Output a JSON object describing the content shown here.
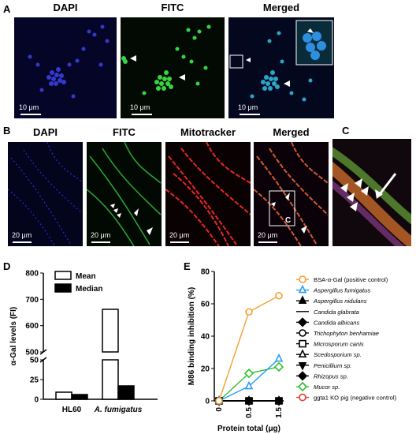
{
  "panel_labels": {
    "a": "A",
    "b": "B",
    "c": "C",
    "d": "D",
    "e": "E"
  },
  "row_a": {
    "titles": [
      "DAPI",
      "FITC",
      "Merged"
    ],
    "scale": "10 μm"
  },
  "row_b": {
    "titles": [
      "DAPI",
      "FITC",
      "Mitotracker",
      "Merged"
    ],
    "scale": "20 μm",
    "box_label": "C"
  },
  "colors": {
    "dapi": "#2a35ff",
    "fitc": "#35d640",
    "mito": "#ff2a2a",
    "mean_fill": "#ffffff",
    "median_fill": "#000000"
  },
  "chart_data": [
    {
      "type": "bar",
      "categories": [
        "HL60",
        "A. fumigatus"
      ],
      "series": [
        {
          "name": "Mean",
          "values": [
            9,
            662
          ]
        },
        {
          "name": "Median",
          "values": [
            6,
            17
          ]
        }
      ],
      "ylabel": "α-Gal levels (FI)",
      "y_ticks_lower": [
        "0",
        "25",
        "50"
      ],
      "y_ticks_upper": [
        "500",
        "600",
        "700",
        "800"
      ],
      "ylim_lower": [
        0,
        50
      ],
      "ylim_upper": [
        500,
        800
      ],
      "broken_axis": true,
      "legend_position": "top-left"
    },
    {
      "type": "line",
      "x": [
        "0",
        "0.5",
        "1.5"
      ],
      "xlabel": "Protein total (μg)",
      "ylabel": "M86 binding inhibition (%)",
      "ylim": [
        0,
        80
      ],
      "y_ticks": [
        "0",
        "20",
        "40",
        "60",
        "80"
      ],
      "legend_position": "right",
      "series": [
        {
          "name": "BSA-α-Gal (positive control)",
          "color": "#f5a030",
          "marker": "circle-open",
          "values": [
            0,
            55,
            65
          ]
        },
        {
          "name": "Aspergillus fumigatus",
          "color": "#2a9df4",
          "marker": "triangle-open",
          "values": [
            0,
            9,
            26
          ]
        },
        {
          "name": "Aspergillus nidulans",
          "color": "#000000",
          "marker": "triangle",
          "values": [
            0,
            0,
            0
          ]
        },
        {
          "name": "Candida glabrata",
          "color": "#000000",
          "marker": "none",
          "values": [
            0,
            0,
            0
          ]
        },
        {
          "name": "Candida albicans",
          "color": "#000000",
          "marker": "diamond",
          "values": [
            0,
            0,
            0
          ]
        },
        {
          "name": "Trichophyton benhamiae",
          "color": "#000000",
          "marker": "circle-open",
          "values": [
            0,
            0,
            0
          ]
        },
        {
          "name": "Microsporum canis",
          "color": "#000000",
          "marker": "square-open",
          "values": [
            0,
            0,
            0
          ]
        },
        {
          "name": "Scedosporium sp.",
          "color": "#000000",
          "marker": "triangle-open",
          "values": [
            0,
            0,
            0
          ]
        },
        {
          "name": "Penicillium sp.",
          "color": "#000000",
          "marker": "triangle-down",
          "values": [
            0,
            0,
            0
          ]
        },
        {
          "name": "Rhizopus sp.",
          "color": "#000000",
          "marker": "diamond",
          "values": [
            0,
            0,
            0
          ]
        },
        {
          "name": "Mucor sp.",
          "color": "#2fc02f",
          "marker": "diamond-open",
          "values": [
            0,
            17,
            21
          ]
        },
        {
          "name": "ggta1 KO pig (negative control)",
          "color": "#e03a3a",
          "marker": "circle-open",
          "values": [
            0,
            0,
            0
          ]
        }
      ]
    }
  ]
}
